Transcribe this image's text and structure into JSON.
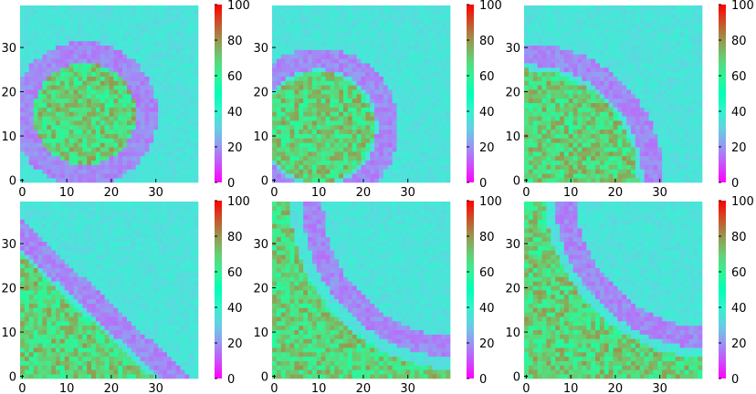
{
  "chart_data": [
    {
      "type": "heatmap",
      "grid": [
        40,
        40
      ],
      "xlim": [
        0,
        39
      ],
      "ylim": [
        0,
        39
      ],
      "xticks": [
        0,
        10,
        20,
        30
      ],
      "yticks": [
        0,
        10,
        20,
        30
      ],
      "colorbar": {
        "min": 0,
        "max": 100,
        "ticks": [
          0,
          20,
          40,
          60,
          80,
          100
        ],
        "colormap": "rainbow"
      },
      "feature": {
        "shape": "disk",
        "center": [
          14,
          15
        ],
        "radius": 11.5,
        "ring_radius": 14,
        "ring_width": 2.4,
        "inside_value": 68,
        "ring_value": 18,
        "background_value": 35
      }
    },
    {
      "type": "heatmap",
      "grid": [
        40,
        40
      ],
      "xlim": [
        0,
        39
      ],
      "ylim": [
        0,
        39
      ],
      "xticks": [
        0,
        10,
        20,
        30
      ],
      "yticks": [
        0,
        10,
        20,
        30
      ],
      "colorbar": {
        "min": 0,
        "max": 100,
        "ticks": [
          0,
          20,
          40,
          60,
          80,
          100
        ],
        "colormap": "rainbow"
      },
      "feature": {
        "shape": "disk",
        "center": [
          10,
          12
        ],
        "radius": 12.5,
        "ring_radius": 15.5,
        "ring_width": 2.4,
        "inside_value": 68,
        "ring_value": 18,
        "background_value": 35
      }
    },
    {
      "type": "heatmap",
      "grid": [
        40,
        40
      ],
      "xlim": [
        0,
        39
      ],
      "ylim": [
        0,
        39
      ],
      "xticks": [
        0,
        10,
        20,
        30
      ],
      "yticks": [
        0,
        10,
        20,
        30
      ],
      "colorbar": {
        "min": 0,
        "max": 100,
        "ticks": [
          0,
          20,
          40,
          60,
          80,
          100
        ],
        "colormap": "rainbow"
      },
      "feature": {
        "shape": "disk",
        "center": [
          0,
          0
        ],
        "radius": 25,
        "ring_radius": 28.5,
        "ring_width": 2.4,
        "inside_value": 68,
        "ring_value": 18,
        "background_value": 35
      }
    },
    {
      "type": "heatmap",
      "grid": [
        40,
        40
      ],
      "xlim": [
        0,
        39
      ],
      "ylim": [
        0,
        39
      ],
      "xticks": [
        0,
        10,
        20,
        30
      ],
      "yticks": [
        0,
        10,
        20,
        30
      ],
      "colorbar": {
        "min": 0,
        "max": 100,
        "ticks": [
          0,
          20,
          40,
          60,
          80,
          100
        ],
        "colormap": "rainbow"
      },
      "feature": {
        "shape": "diagonal",
        "x_intercept": 29,
        "y_intercept": 27,
        "ring_offset": 3.5,
        "ring_width": 2.4,
        "inside_value": 68,
        "ring_value": 18,
        "background_value": 35
      }
    },
    {
      "type": "heatmap",
      "grid": [
        40,
        40
      ],
      "xlim": [
        0,
        39
      ],
      "ylim": [
        0,
        39
      ],
      "xticks": [
        0,
        10,
        20,
        30
      ],
      "yticks": [
        0,
        10,
        20,
        30
      ],
      "colorbar": {
        "min": 0,
        "max": 100,
        "ticks": [
          0,
          20,
          40,
          60,
          80,
          100
        ],
        "colormap": "rainbow"
      },
      "feature": {
        "shape": "concave",
        "center": [
          42,
          40
        ],
        "radius": 38.5,
        "ring_radius": 33.5,
        "ring_width": 2.4,
        "inside_value": 68,
        "ring_value": 18,
        "background_value": 35
      }
    },
    {
      "type": "heatmap",
      "grid": [
        40,
        40
      ],
      "xlim": [
        0,
        39
      ],
      "ylim": [
        0,
        39
      ],
      "xticks": [
        0,
        10,
        20,
        30
      ],
      "yticks": [
        0,
        10,
        20,
        30
      ],
      "colorbar": {
        "min": 0,
        "max": 100,
        "ticks": [
          0,
          20,
          40,
          60,
          80,
          100
        ],
        "colormap": "rainbow"
      },
      "feature": {
        "shape": "concave",
        "center": [
          42,
          42
        ],
        "radius": 38,
        "ring_radius": 33.5,
        "ring_width": 2.4,
        "inside_value": 68,
        "ring_value": 18,
        "background_value": 35
      }
    }
  ]
}
